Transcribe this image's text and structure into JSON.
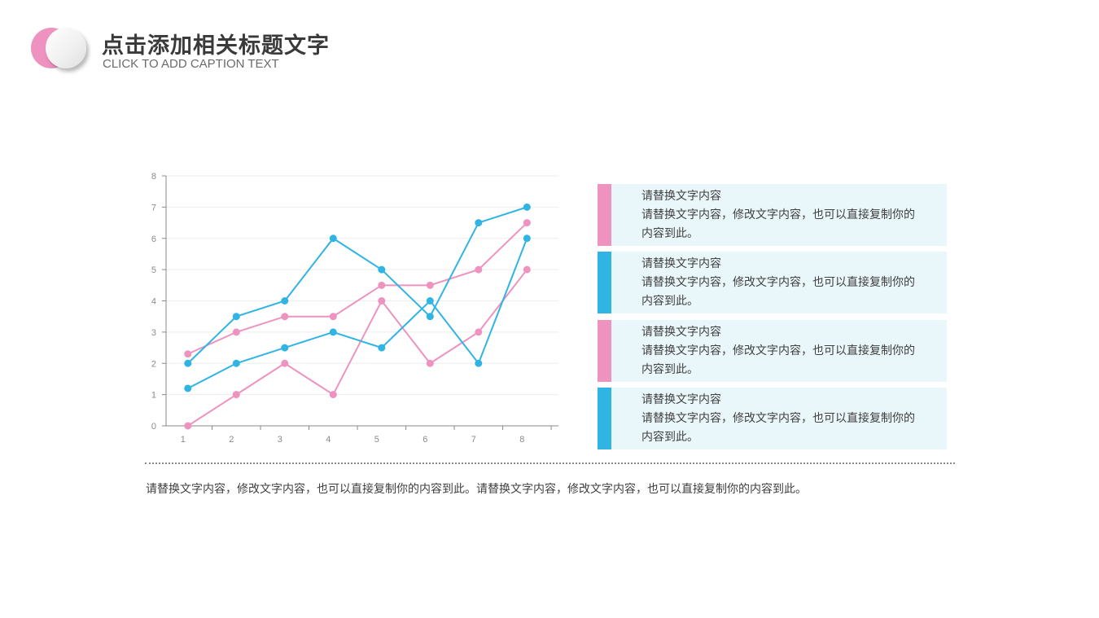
{
  "header": {
    "title": "点击添加相关标题文字",
    "subtitle": "CLICK TO ADD CAPTION TEXT"
  },
  "colors": {
    "pink": "#ee93c0",
    "blue": "#30b4e4",
    "panel_bg": "#e9f6fa",
    "axis": "#888888",
    "grid": "#eeeeee"
  },
  "chart_data": {
    "type": "line",
    "x": [
      1,
      2,
      3,
      4,
      5,
      6,
      7,
      8
    ],
    "xlim": [
      0.55,
      8.65
    ],
    "ylim": [
      0,
      8
    ],
    "yticks": [
      0,
      1,
      2,
      3,
      4,
      5,
      6,
      7,
      8
    ],
    "grid": true,
    "series": [
      {
        "color": "#ee93c0",
        "values": [
          0,
          1,
          2,
          1,
          4,
          2,
          3,
          5
        ]
      },
      {
        "color": "#ee93c0",
        "values": [
          2.3,
          3,
          3.5,
          3.5,
          4.5,
          4.5,
          5,
          6.5
        ]
      },
      {
        "color": "#30b4e4",
        "values": [
          1.2,
          2,
          2.5,
          3,
          2.5,
          4,
          2,
          6
        ]
      },
      {
        "color": "#30b4e4",
        "values": [
          2,
          3.5,
          4,
          6,
          5,
          3.5,
          6.5,
          7
        ]
      }
    ]
  },
  "panels": [
    {
      "color": "#ee93c0",
      "heading": "请替换文字内容",
      "body": "请替换文字内容，修改文字内容，也可以直接复制你的内容到此。"
    },
    {
      "color": "#30b4e4",
      "heading": "请替换文字内容",
      "body": "请替换文字内容，修改文字内容，也可以直接复制你的内容到此。"
    },
    {
      "color": "#ee93c0",
      "heading": "请替换文字内容",
      "body": "请替换文字内容，修改文字内容，也可以直接复制你的内容到此。"
    },
    {
      "color": "#30b4e4",
      "heading": "请替换文字内容",
      "body": "请替换文字内容，修改文字内容，也可以直接复制你的内容到此。"
    }
  ],
  "footer": {
    "text": "请替换文字内容，修改文字内容，也可以直接复制你的内容到此。请替换文字内容，修改文字内容，也可以直接复制你的内容到此。"
  }
}
